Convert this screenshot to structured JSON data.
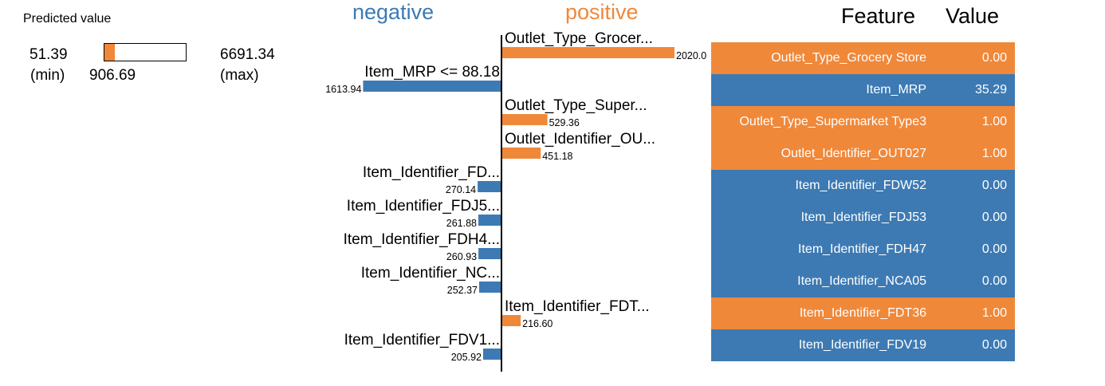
{
  "predicted": {
    "title": "Predicted value",
    "min_value": "51.39",
    "min_label": "(min)",
    "value": "906.69",
    "max_value": "6691.34",
    "max_label": "(max)",
    "fill_fraction": 0.128
  },
  "headers": {
    "negative": "negative",
    "positive": "positive"
  },
  "colors": {
    "negative": "#3d7ab3",
    "positive": "#f0883a"
  },
  "chart_data": {
    "type": "bar",
    "orientation": "horizontal",
    "items": [
      {
        "feature": "Outlet_Type_Grocer...",
        "value": 2020.0,
        "value_label": "2020.0",
        "side": "positive"
      },
      {
        "feature": "Item_MRP <= 88.18",
        "value": 1613.94,
        "value_label": "1613.94",
        "side": "negative"
      },
      {
        "feature": "Outlet_Type_Super...",
        "value": 529.36,
        "value_label": "529.36",
        "side": "positive"
      },
      {
        "feature": "Outlet_Identifier_OU...",
        "value": 451.18,
        "value_label": "451.18",
        "side": "positive"
      },
      {
        "feature": "Item_Identifier_FD...",
        "value": 270.14,
        "value_label": "270.14",
        "side": "negative"
      },
      {
        "feature": "Item_Identifier_FDJ5...",
        "value": 261.88,
        "value_label": "261.88",
        "side": "negative"
      },
      {
        "feature": "Item_Identifier_FDH4...",
        "value": 260.93,
        "value_label": "260.93",
        "side": "negative"
      },
      {
        "feature": "Item_Identifier_NC...",
        "value": 252.37,
        "value_label": "252.37",
        "side": "negative"
      },
      {
        "feature": "Item_Identifier_FDT...",
        "value": 216.6,
        "value_label": "216.60",
        "side": "positive"
      },
      {
        "feature": "Item_Identifier_FDV1...",
        "value": 205.92,
        "value_label": "205.92",
        "side": "negative"
      }
    ]
  },
  "table": {
    "header_feature": "Feature",
    "header_value": "Value",
    "rows": [
      {
        "feature": "Outlet_Type_Grocery Store",
        "value": "0.00",
        "side": "positive"
      },
      {
        "feature": "Item_MRP",
        "value": "35.29",
        "side": "negative"
      },
      {
        "feature": "Outlet_Type_Supermarket Type3",
        "value": "1.00",
        "side": "positive"
      },
      {
        "feature": "Outlet_Identifier_OUT027",
        "value": "1.00",
        "side": "positive"
      },
      {
        "feature": "Item_Identifier_FDW52",
        "value": "0.00",
        "side": "negative"
      },
      {
        "feature": "Item_Identifier_FDJ53",
        "value": "0.00",
        "side": "negative"
      },
      {
        "feature": "Item_Identifier_FDH47",
        "value": "0.00",
        "side": "negative"
      },
      {
        "feature": "Item_Identifier_NCA05",
        "value": "0.00",
        "side": "negative"
      },
      {
        "feature": "Item_Identifier_FDT36",
        "value": "1.00",
        "side": "positive"
      },
      {
        "feature": "Item_Identifier_FDV19",
        "value": "0.00",
        "side": "negative"
      }
    ]
  }
}
